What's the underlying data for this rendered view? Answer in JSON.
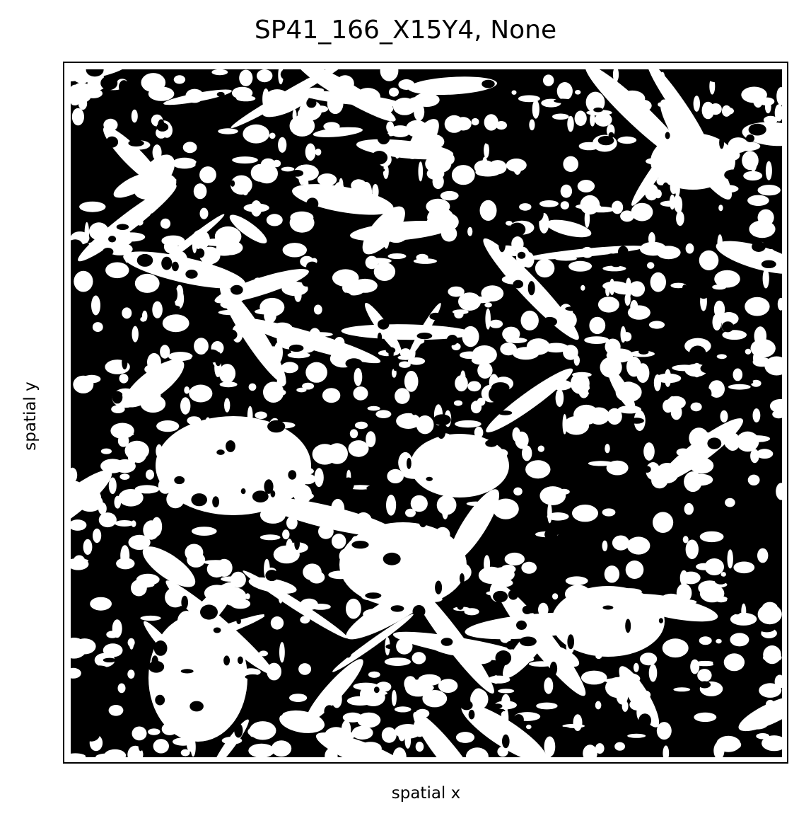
{
  "chart_data": {
    "type": "heatmap",
    "title": "SP41_166_X15Y4, None",
    "xlabel": "spatial x",
    "ylabel": "spatial y",
    "xticks": [],
    "yticks": [],
    "grid": false,
    "legend": "none",
    "colors": {
      "foreground": "#000000",
      "background": "#ffffff",
      "frame": "#000000"
    }
  }
}
